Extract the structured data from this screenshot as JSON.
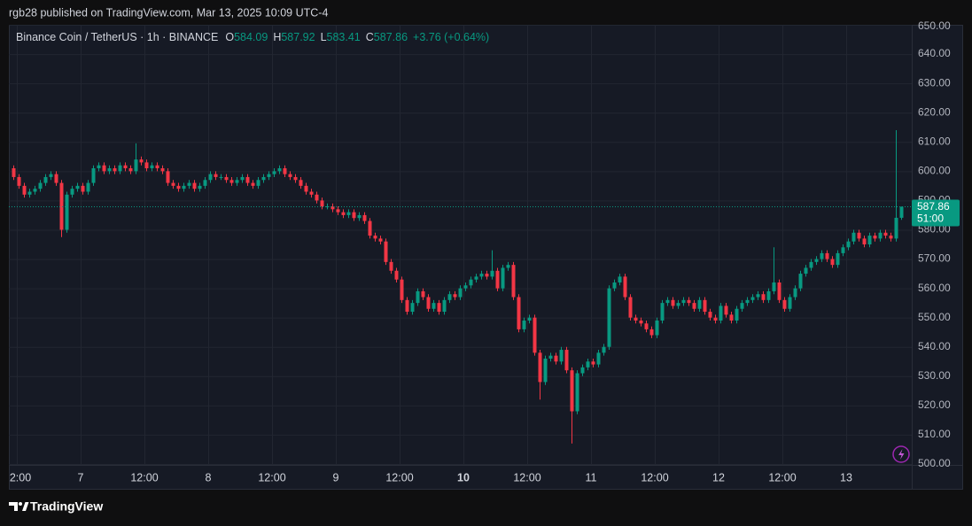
{
  "chart_data": {
    "type": "candlestick",
    "published": "rgb28 published on TradingView.com, Mar 13, 2025 10:09 UTC-4",
    "symbol": "Binance Coin / TetherUS · 1h · BINANCE",
    "legend_labels": [
      "O",
      "H",
      "L",
      "C"
    ],
    "change_label": "+3.76 (+0.64%)",
    "countdown": "51:00",
    "brand": "TradingView",
    "up_color": "#089981",
    "down_color": "#f23645",
    "grid": true,
    "ylim": [
      500,
      650
    ],
    "yticks": [
      {
        "value": 500,
        "label": "500.00"
      },
      {
        "value": 510,
        "label": "510.00"
      },
      {
        "value": 520,
        "label": "520.00"
      },
      {
        "value": 530,
        "label": "530.00"
      },
      {
        "value": 540,
        "label": "540.00"
      },
      {
        "value": 550,
        "label": "550.00"
      },
      {
        "value": 560,
        "label": "560.00"
      },
      {
        "value": 570,
        "label": "570.00"
      },
      {
        "value": 580,
        "label": "580.00"
      },
      {
        "value": 590,
        "label": "590.00"
      },
      {
        "value": 600,
        "label": "600.00"
      },
      {
        "value": 610,
        "label": "610.00"
      },
      {
        "value": 620,
        "label": "620.00"
      },
      {
        "value": 630,
        "label": "630.00"
      },
      {
        "value": 640,
        "label": "640.00"
      },
      {
        "value": 650,
        "label": "650.00"
      }
    ],
    "xticks": [
      "2:00",
      "7",
      "12:00",
      "8",
      "12:00",
      "9",
      "12:00",
      "10",
      "12:00",
      "11",
      "12:00",
      "12",
      "12:00",
      "13"
    ],
    "open": [
      601,
      598,
      595,
      592,
      593,
      594,
      596,
      598,
      599,
      596,
      580,
      592,
      594,
      595,
      593,
      596,
      601,
      602,
      600,
      601,
      600,
      602,
      601,
      600,
      604,
      603,
      601,
      602,
      601,
      600,
      596,
      595,
      594,
      595,
      596,
      594,
      595,
      597,
      599,
      598,
      598,
      597,
      596,
      597,
      598,
      596,
      595,
      597,
      598,
      599,
      600,
      601,
      599,
      598,
      597,
      595,
      593,
      592,
      590,
      588,
      588,
      587,
      586,
      585,
      586,
      584,
      585,
      583,
      578,
      577,
      576,
      569,
      566,
      563,
      556,
      552,
      555,
      559,
      557,
      553,
      555,
      552,
      556,
      558,
      557,
      560,
      561,
      563,
      564,
      565,
      564,
      566,
      560,
      567,
      568,
      557,
      546,
      549,
      550,
      538,
      528,
      536,
      537,
      535,
      539,
      532,
      518,
      531,
      533,
      535,
      534,
      538,
      540,
      560,
      562,
      564,
      557,
      550,
      549,
      548,
      546,
      544,
      549,
      555,
      556,
      554,
      555,
      556,
      555,
      553,
      556,
      552,
      550,
      549,
      554,
      551,
      549,
      553,
      555,
      556,
      557,
      558,
      556,
      559,
      562,
      556,
      553,
      557,
      560,
      565,
      567,
      569,
      570,
      572,
      570,
      568,
      572,
      574,
      576,
      579,
      577,
      575,
      578,
      577,
      579,
      578,
      577,
      584.09
    ],
    "high": [
      602,
      599,
      596,
      594,
      595,
      597,
      599,
      600,
      600,
      597,
      593,
      595,
      596,
      596,
      597,
      602,
      603,
      603,
      602,
      602,
      603,
      603,
      602,
      609.5,
      605,
      604,
      603,
      603,
      602,
      601,
      597,
      596,
      596,
      597,
      597,
      596,
      598,
      600,
      600,
      599,
      599,
      598,
      598,
      599,
      599,
      597,
      598,
      599,
      600,
      601,
      602,
      602,
      600,
      599,
      598,
      596,
      594,
      593,
      591,
      589,
      589,
      588,
      587,
      587,
      587,
      586,
      586,
      584,
      579,
      578,
      577,
      570,
      567,
      564,
      557,
      556,
      560,
      560,
      558,
      556,
      556,
      557,
      559,
      559,
      561,
      562,
      564,
      565,
      566,
      566,
      573,
      567,
      568,
      569,
      569,
      558,
      550,
      551,
      551,
      539,
      537,
      538,
      538,
      540,
      540,
      533,
      532,
      534,
      536,
      536,
      539,
      541,
      561,
      563,
      565,
      565,
      558,
      551,
      550,
      549,
      547,
      550,
      556,
      557,
      557,
      556,
      557,
      557,
      556,
      557,
      557,
      553,
      551,
      555,
      555,
      552,
      554,
      556,
      557,
      558,
      559,
      559,
      560,
      574,
      563,
      557,
      558,
      561,
      566,
      568,
      570,
      571,
      573,
      573,
      571,
      573,
      575,
      577,
      580,
      580,
      578,
      579,
      579,
      580,
      580,
      579,
      614,
      587.92
    ],
    "low": [
      597,
      594,
      591,
      591,
      592,
      593,
      595,
      597,
      595,
      577.5,
      579,
      591,
      593,
      592,
      592,
      595,
      600,
      599,
      599,
      599,
      599,
      600,
      599,
      599,
      602,
      600,
      600,
      600,
      599,
      595,
      594,
      593,
      593,
      594,
      593,
      593,
      594,
      596,
      597,
      597,
      596,
      595,
      595,
      596,
      595,
      594,
      594,
      596,
      597,
      598,
      599,
      598,
      597,
      596,
      594,
      592,
      591,
      589,
      587,
      587,
      586,
      585,
      584,
      584,
      583,
      583,
      582,
      577,
      576,
      575,
      568,
      565,
      562,
      555,
      551,
      551,
      554,
      556,
      552,
      552,
      551,
      551,
      555,
      556,
      556,
      559,
      560,
      562,
      563,
      563,
      563,
      559,
      559,
      566,
      556,
      545,
      545,
      548,
      537,
      522,
      527,
      535,
      534,
      534,
      531,
      507,
      517,
      530,
      532,
      533,
      533,
      537,
      539,
      559,
      561,
      556,
      549,
      548,
      547,
      545,
      543,
      543,
      548,
      554,
      553,
      553,
      554,
      554,
      552,
      552,
      551,
      549,
      548,
      548,
      550,
      548,
      548,
      552,
      554,
      555,
      556,
      555,
      555,
      558,
      555,
      552,
      552,
      556,
      559,
      564,
      566,
      568,
      569,
      569,
      567,
      567,
      571,
      573,
      575,
      576,
      574,
      574,
      576,
      576,
      577,
      576,
      576,
      583.41
    ],
    "close": [
      598,
      595,
      592,
      593,
      594,
      596,
      598,
      599,
      596,
      580,
      592,
      594,
      595,
      593,
      596,
      601,
      602,
      600,
      601,
      600,
      602,
      601,
      600,
      604,
      603,
      601,
      602,
      601,
      600,
      596,
      595,
      594,
      595,
      596,
      594,
      595,
      597,
      599,
      598,
      598,
      597,
      596,
      597,
      598,
      596,
      595,
      597,
      598,
      599,
      600,
      601,
      599,
      598,
      597,
      595,
      593,
      592,
      590,
      588,
      588,
      587,
      586,
      585,
      586,
      584,
      585,
      583,
      578,
      577,
      576,
      569,
      566,
      563,
      556,
      552,
      555,
      559,
      557,
      553,
      555,
      552,
      556,
      558,
      557,
      560,
      561,
      563,
      564,
      565,
      564,
      566,
      560,
      567,
      568,
      557,
      546,
      549,
      550,
      538,
      528,
      536,
      537,
      535,
      539,
      532,
      518,
      531,
      533,
      535,
      534,
      538,
      540,
      560,
      562,
      564,
      557,
      550,
      549,
      548,
      546,
      544,
      549,
      555,
      556,
      554,
      555,
      556,
      555,
      553,
      556,
      552,
      550,
      549,
      554,
      551,
      549,
      553,
      555,
      556,
      557,
      558,
      556,
      559,
      562,
      556,
      553,
      557,
      560,
      565,
      567,
      569,
      570,
      572,
      570,
      568,
      572,
      574,
      576,
      579,
      577,
      575,
      578,
      577,
      579,
      578,
      577,
      584.09,
      587.86
    ]
  }
}
